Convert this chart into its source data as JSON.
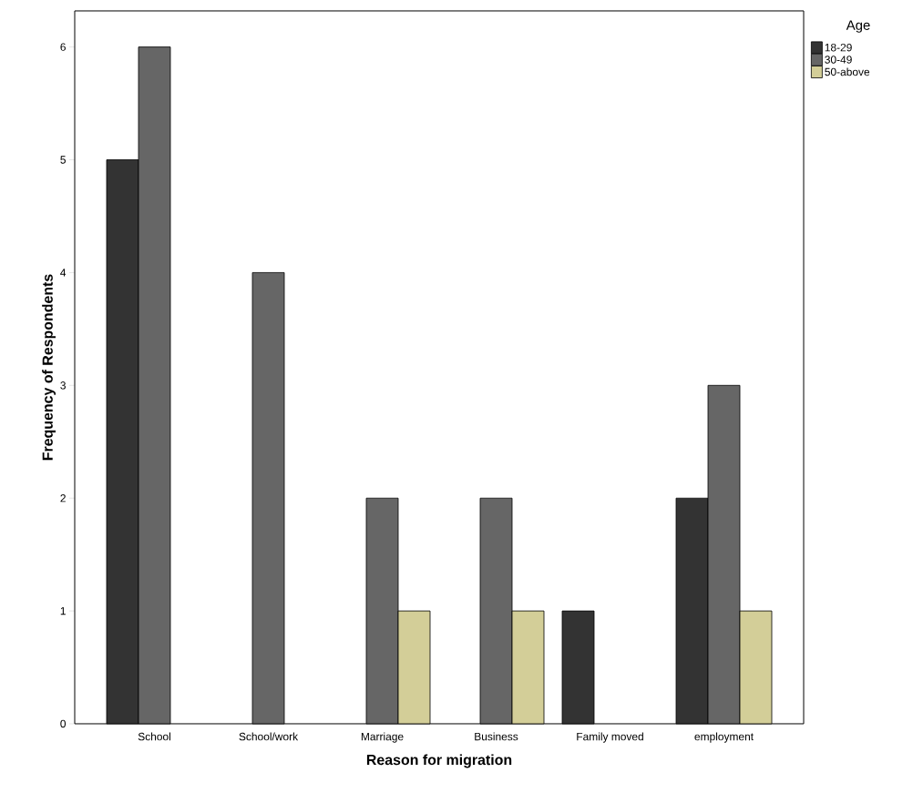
{
  "chart_data": {
    "type": "bar",
    "xlabel": "Reason for migration",
    "ylabel": "Frequency of Respondents",
    "legend_title": "Age",
    "categories": [
      "School",
      "School/work",
      "Marriage",
      "Business",
      "Family moved",
      "employment"
    ],
    "series": [
      {
        "name": "18-29",
        "color": "#333333",
        "values": [
          5,
          null,
          null,
          null,
          1,
          2
        ]
      },
      {
        "name": "30-49",
        "color": "#666666",
        "values": [
          6,
          4,
          2,
          2,
          null,
          3
        ]
      },
      {
        "name": "50-above",
        "color": "#d3ce98",
        "values": [
          null,
          null,
          1,
          1,
          null,
          1
        ]
      }
    ],
    "ylim": [
      0,
      6.32
    ],
    "yticks": [
      0,
      1,
      2,
      3,
      4,
      5,
      6
    ],
    "legend": "top right"
  }
}
